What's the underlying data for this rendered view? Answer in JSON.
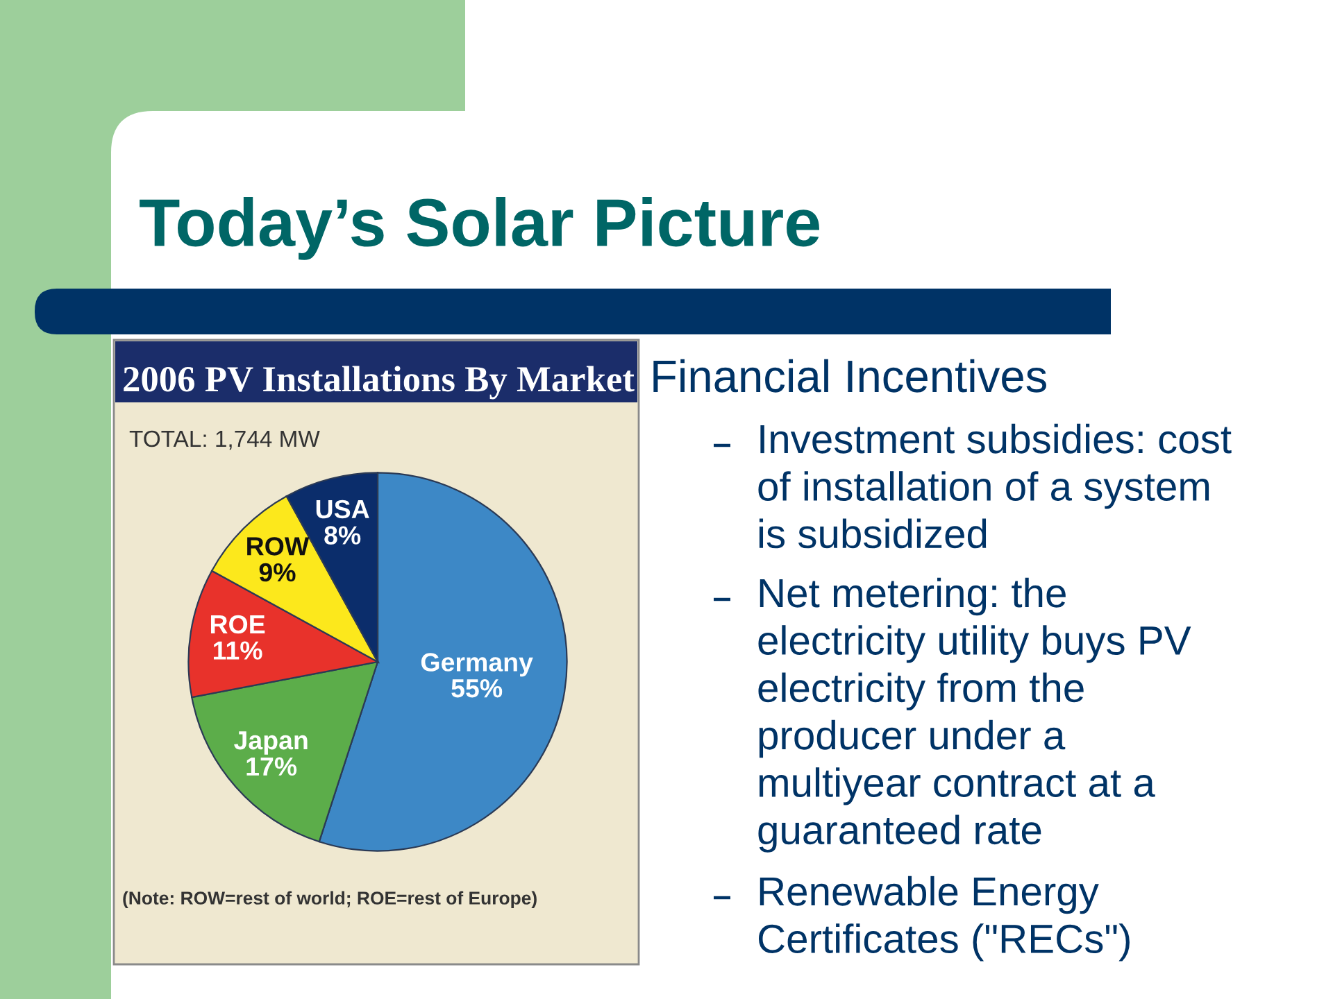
{
  "chart_data": {
    "type": "pie",
    "title": "2006 PV Installations By Market",
    "subtitle": "TOTAL: 1,744 MW",
    "categories": [
      "Germany",
      "Japan",
      "ROE",
      "ROW",
      "USA"
    ],
    "values": [
      55,
      17,
      11,
      9,
      8
    ],
    "colors": [
      "#3d88c6",
      "#5cad4a",
      "#e8322b",
      "#fce81c",
      "#0b2d6b"
    ],
    "value_labels": [
      "55%",
      "17%",
      "11%",
      "9%",
      "8%"
    ],
    "annotations": [
      "Today’s Solar Picture",
      "(Note: ROW=rest of world; ROE=rest of Europe)",
      "Financial Incentives",
      "Investment subsidies: cost\nof installation of a system\nis subsidized",
      "Net metering: the\nelectricity utility buys PV\nelectricity from the\nproducer under a\nmultiyear contract at a\nguaranteed rate",
      "Renewable Energy\nCertificates (\"RECs\")"
    ]
  }
}
